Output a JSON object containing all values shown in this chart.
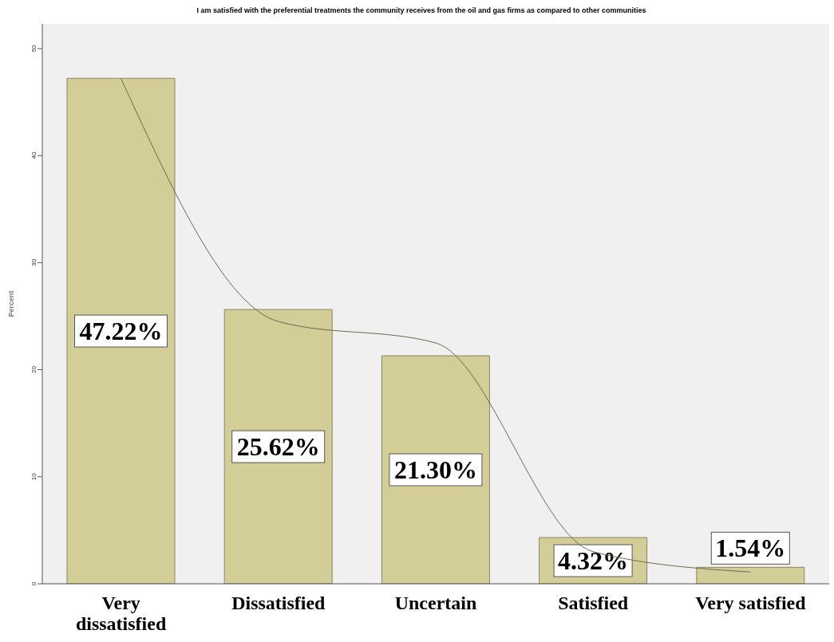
{
  "chart_data": {
    "type": "bar",
    "title": "I am satisfied with the preferential treatments the community receives from the oil and gas firms as compared to other communities",
    "ylabel": "Percent",
    "categories": [
      "Very dissatisfied",
      "Dissatisfied",
      "Uncertain",
      "Satisfied",
      "Very satisfied"
    ],
    "series": [
      {
        "color": "#d3ce98",
        "values": [
          47.22,
          25.62,
          21.3,
          4.32,
          1.54
        ],
        "value_labels": [
          "47.22%",
          "25.62%",
          "21.30%",
          "4.32%",
          "1.54%"
        ]
      },
      {
        "type": "line",
        "color": "#6b6a4e",
        "values": [
          47.2,
          24.5,
          22.5,
          3,
          1.1
        ]
      }
    ],
    "ylim": [
      0,
      52.3
    ],
    "yticks": [
      0,
      10,
      20,
      30,
      40,
      50
    ]
  }
}
